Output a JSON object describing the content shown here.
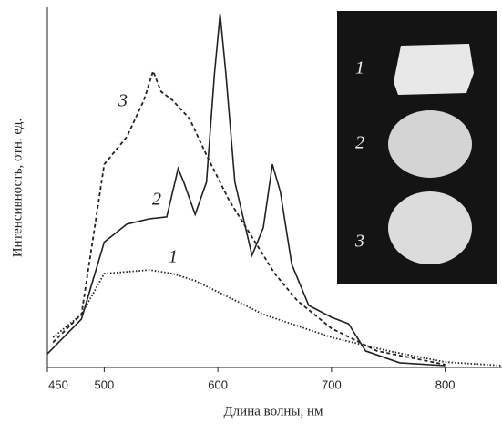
{
  "chart_data": {
    "type": "line",
    "xlabel": "Длина волны, нм",
    "ylabel": "Интенсивность, отн. ед.",
    "xlim": [
      450,
      850
    ],
    "xticks": [
      450,
      500,
      600,
      700,
      800
    ],
    "ylim": [
      0,
      100
    ],
    "grid": false,
    "series": [
      {
        "name": "1",
        "color": "#222",
        "dash": "dotted",
        "x": [
          455,
          480,
          500,
          520,
          540,
          560,
          580,
          600,
          640,
          700,
          750,
          800,
          850
        ],
        "values": [
          8.4,
          14.8,
          26.2,
          26.7,
          27.2,
          26.2,
          24.2,
          21.1,
          14.8,
          8.4,
          4.6,
          1.5,
          0.5
        ]
      },
      {
        "name": "2",
        "color": "#222",
        "dash": "solid",
        "x": [
          450,
          480,
          500,
          520,
          540,
          555,
          565,
          570,
          580,
          590,
          597,
          602,
          607,
          615,
          630,
          640,
          648,
          655,
          665,
          680,
          700,
          715,
          730,
          760,
          800
        ],
        "values": [
          3.8,
          13.5,
          35,
          40,
          41.5,
          42,
          55.5,
          51.7,
          42.7,
          51.7,
          82,
          98.7,
          82,
          51.7,
          31.3,
          39,
          56.7,
          49,
          28.8,
          17.3,
          14,
          12.2,
          4.6,
          1.3,
          0.5
        ]
      },
      {
        "name": "3",
        "color": "#222",
        "dash": "dashed",
        "x": [
          455,
          480,
          500,
          520,
          535,
          543,
          550,
          560,
          575,
          590,
          610,
          630,
          650,
          670,
          700,
          740,
          800
        ],
        "values": [
          7,
          14.8,
          56.7,
          64.4,
          74.6,
          82.7,
          77,
          74.6,
          69.5,
          59.3,
          46.6,
          36.4,
          26.2,
          18.6,
          10.9,
          4.6,
          0.8
        ]
      }
    ],
    "inset": {
      "labels": [
        "1",
        "2",
        "3"
      ]
    }
  }
}
